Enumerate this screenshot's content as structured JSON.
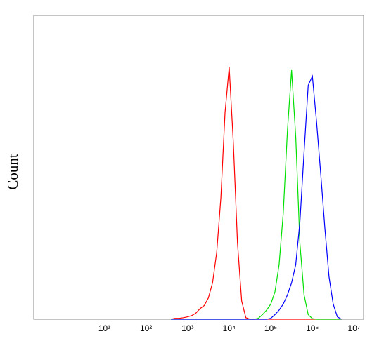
{
  "chart_data": {
    "type": "line",
    "y_label": "Count",
    "xscale": "log",
    "x": [
      398,
      501,
      631,
      794,
      1000,
      1259,
      1585,
      1995,
      2512,
      3162,
      3981,
      5012,
      6310,
      7943,
      10000,
      12589,
      15849,
      19953,
      25119,
      31623,
      39811,
      50119,
      63096,
      79433,
      100000,
      125893,
      158489,
      199526,
      251189,
      316228,
      398107,
      501187,
      630957,
      794328,
      1000000,
      1258925,
      1584893,
      1995262,
      2511886,
      3162278,
      3981072,
      5011872
    ],
    "series": [
      {
        "color": "#ff0000",
        "values": [
          0,
          0.3,
          0.3,
          0.5,
          0.8,
          1.2,
          2,
          3.5,
          4.5,
          7,
          12,
          22,
          40,
          68,
          83,
          58,
          25,
          6,
          0.5,
          0,
          0,
          0,
          0,
          0,
          0,
          0,
          0,
          0,
          0,
          0,
          0,
          0,
          0,
          0,
          0,
          0,
          0,
          0,
          0,
          0,
          0,
          0
        ]
      },
      {
        "color": "#00e000",
        "values": [
          0,
          0,
          0,
          0,
          0,
          0,
          0,
          0,
          0,
          0,
          0,
          0,
          0,
          0,
          0,
          0,
          0,
          0,
          0,
          0,
          0,
          0.3,
          1.5,
          3,
          5,
          9,
          18,
          35,
          62,
          82,
          60,
          25,
          8,
          1.5,
          0.2,
          0,
          0,
          0,
          0,
          0,
          0,
          0
        ]
      },
      {
        "color": "#0000ff",
        "values": [
          0,
          0,
          0,
          0,
          0,
          0,
          0,
          0,
          0,
          0,
          0,
          0,
          0,
          0,
          0,
          0,
          0,
          0,
          0,
          0,
          0,
          0,
          0,
          0,
          0.3,
          1.5,
          3,
          5,
          8,
          12,
          18,
          32,
          55,
          77,
          80,
          65,
          48,
          30,
          14,
          5,
          0.8,
          0
        ]
      }
    ],
    "xlim": [
      0.2,
      17000000
    ],
    "ylim": [
      0,
      100
    ],
    "xticks": [
      {
        "value": 10,
        "label": "10¹"
      },
      {
        "value": 100,
        "label": "10²"
      },
      {
        "value": 1000,
        "label": "10³"
      },
      {
        "value": 10000,
        "label": "10⁴"
      },
      {
        "value": 100000,
        "label": "10⁵"
      },
      {
        "value": 1000000,
        "label": "10⁶"
      },
      {
        "value": 10000000,
        "label": "10⁷"
      }
    ]
  }
}
